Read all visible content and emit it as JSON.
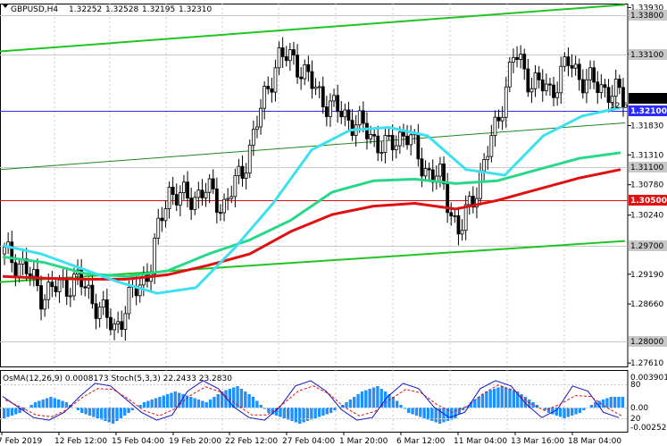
{
  "chart_data": [
    {
      "type": "candlestick",
      "header": {
        "symbol": "GBPUSD,H4",
        "ohlc": [
          "1.32252",
          "1.32528",
          "1.32195",
          "1.32310"
        ]
      },
      "ylim": [
        1.2755,
        1.34
      ],
      "y_ticks": [
        {
          "v": 1.3393,
          "label": "1.33930"
        },
        {
          "v": 1.331,
          "label": "1.33100"
        },
        {
          "v": 1.3183,
          "label": "1.31830"
        },
        {
          "v": 1.3131,
          "label": "1.31310"
        },
        {
          "v": 1.3078,
          "label": "1.30780"
        },
        {
          "v": 1.3024,
          "label": "1.30240"
        },
        {
          "v": 1.2919,
          "label": "1.29190"
        },
        {
          "v": 1.2866,
          "label": "1.28660"
        },
        {
          "v": 1.2761,
          "label": "1.27610"
        }
      ],
      "levels": [
        {
          "v": 1.338,
          "label": "1.33800",
          "color": "#c8c8c8"
        },
        {
          "v": 1.331,
          "label": "1.33100",
          "color": "#c8c8c8"
        },
        {
          "v": 1.321,
          "label": "1.32100",
          "color": "#2b2bff"
        },
        {
          "v": 1.311,
          "label": "1.31100",
          "color": "#c8c8c8"
        },
        {
          "v": 1.305,
          "label": "1.30500",
          "color": "#e01010"
        },
        {
          "v": 1.297,
          "label": "1.29700",
          "color": "#c8c8c8"
        },
        {
          "v": 1.28,
          "label": "1.28000",
          "color": "#c8c8c8"
        }
      ],
      "current_price": {
        "v": 1.3231,
        "label": "1.32310"
      },
      "level_marker": "32.6",
      "x_labels": [
        "7 Feb 2019",
        "12 Feb 12:00",
        "15 Feb 04:00",
        "19 Feb 20:00",
        "22 Feb 12:00",
        "27 Feb 04:00",
        "1 Mar 20:00",
        "6 Mar 12:00",
        "11 Mar 04:00",
        "13 Mar 16:00",
        "18 Mar 04:00"
      ],
      "channel": {
        "upper": [
          1.3315,
          1.3398
        ],
        "middle": [
          1.3105,
          1.3188
        ],
        "lower": [
          1.2905,
          1.2978
        ]
      },
      "ma_fast": [
        1.297,
        1.2955,
        1.293,
        1.2905,
        1.2885,
        1.2895,
        1.2965,
        1.3045,
        1.314,
        1.3175,
        1.318,
        1.3165,
        1.3105,
        1.3095,
        1.3165,
        1.32,
        1.3215
      ],
      "ma_mid": [
        1.295,
        1.294,
        1.292,
        1.2915,
        1.2925,
        1.2955,
        1.298,
        1.3015,
        1.3065,
        1.3085,
        1.3088,
        1.308,
        1.3085,
        1.3105,
        1.3125,
        1.3135
      ],
      "ma_slow": [
        1.2915,
        1.2912,
        1.291,
        1.291,
        1.2918,
        1.2935,
        1.2955,
        1.2995,
        1.3025,
        1.304,
        1.3045,
        1.3035,
        1.305,
        1.307,
        1.309,
        1.3105
      ],
      "closes": [
        1.2955,
        1.2935,
        1.2885,
        1.2895,
        1.291,
        1.287,
        1.282,
        1.288,
        1.293,
        1.307,
        1.305,
        1.307,
        1.304,
        1.3095,
        1.32,
        1.3305,
        1.33,
        1.325,
        1.3215,
        1.3195,
        1.317,
        1.314,
        1.3175,
        1.311,
        1.3085,
        1.299,
        1.308,
        1.318,
        1.331,
        1.326,
        1.3245,
        1.3295,
        1.326,
        1.325,
        1.3231
      ]
    },
    {
      "type": "oscillator",
      "label": "OsMA(12,26,9) 0.0008173 Stoch(5,3,3) 22.2433 23.2830",
      "y_labels": [
        "0.0039015",
        "0.00",
        "-0.002525"
      ],
      "levels": [
        "80",
        "20"
      ],
      "osma": [
        -2,
        -1,
        1,
        2,
        1,
        -1,
        -2,
        -3,
        -1,
        1,
        2,
        3,
        2,
        1,
        3,
        4,
        2,
        -1,
        -2,
        -3,
        -2,
        -1,
        1,
        3,
        4,
        2,
        -1,
        -2,
        -3,
        -2,
        1,
        3,
        4,
        3,
        1,
        -1,
        -2,
        -1,
        1,
        2
      ],
      "stoch_k": [
        60,
        40,
        20,
        15,
        30,
        60,
        85,
        80,
        55,
        30,
        15,
        25,
        70,
        90,
        75,
        40,
        20,
        15,
        40,
        80,
        90,
        70,
        35,
        15,
        20,
        60,
        85,
        75,
        40,
        20,
        30,
        75,
        90,
        80,
        45,
        20,
        35,
        80,
        70,
        30,
        20
      ]
    }
  ]
}
